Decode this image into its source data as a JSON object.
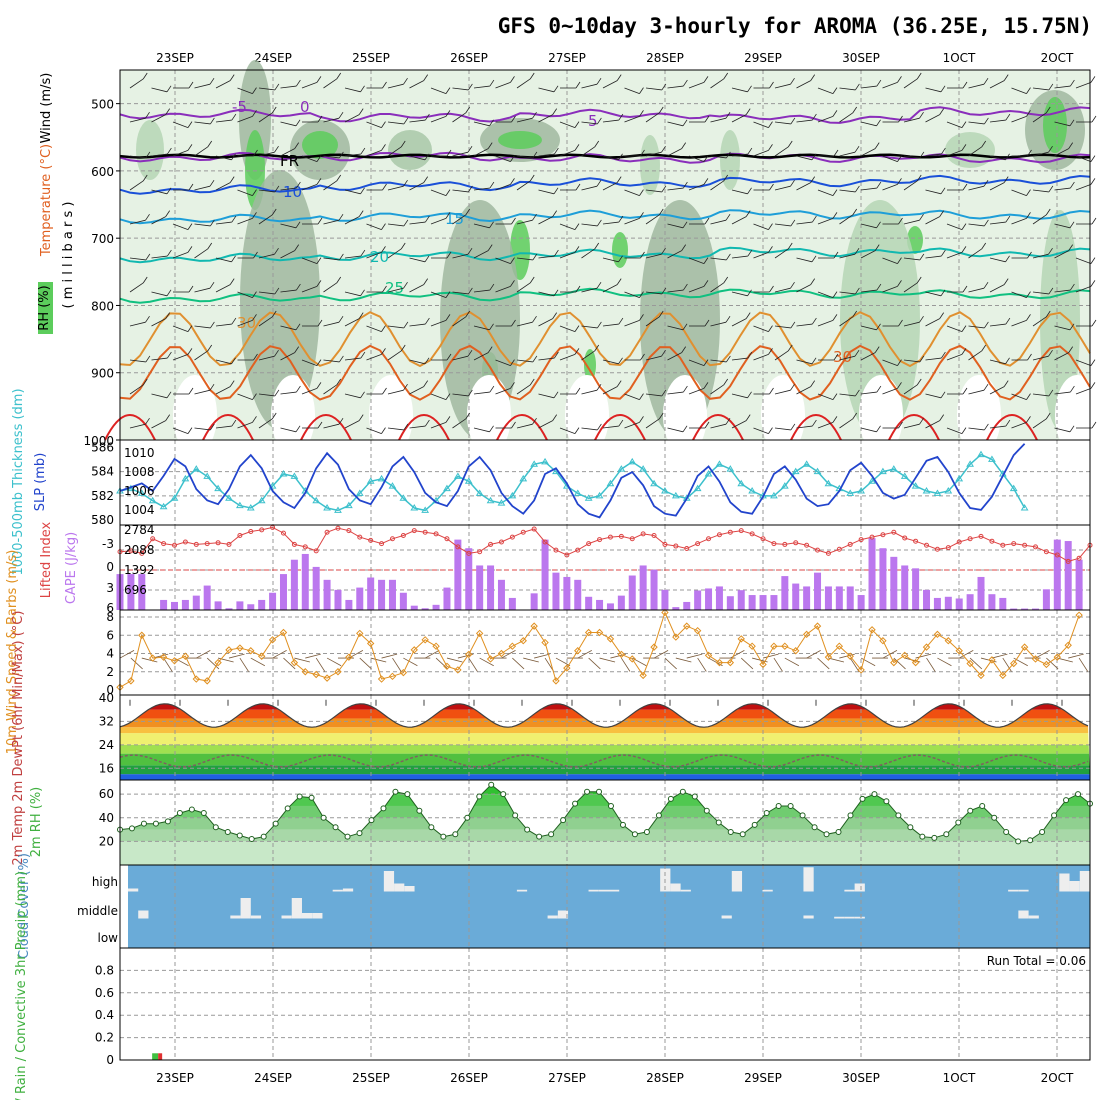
{
  "title": "GFS 0~10day 3-hourly for AROMA (36.25E, 15.75N)",
  "date_labels": [
    "23SEP",
    "24SEP",
    "25SEP",
    "26SEP",
    "27SEP",
    "28SEP",
    "29SEP",
    "30SEP",
    "1OCT",
    "2OCT"
  ],
  "panel_labels": {
    "rh": "RH (%)",
    "temperature": "Temperature (°C)",
    "wind": "Wind (m/s)",
    "millibars": "( m i l l i b a r s )",
    "thickness": "1000-500mb Thickness (dm)",
    "slp": "SLP (mb)",
    "lifted_index": "Lifted Index",
    "cape": "CAPE (J/kg)",
    "wind10": "10m Wind Speed & Barbs (m/s)",
    "t2m": "2m Temp 2m DewPt (6hr Min/Max) (°C)",
    "rh2m": "2m RH (%)",
    "cloud": "Cloud Cover (%)",
    "precip": "Total / Rain / Convective 3hr Precip (mm)"
  },
  "run_total": "Run Total = 0.06",
  "colors": {
    "rh_light": "#e6f2e4",
    "rh_mid": "#b5d6b5",
    "rh_dark": "#a0b8a0",
    "rh_green": "#5ccd5c",
    "thick": "#3cc0cc",
    "slp": "#2244cc",
    "li": "#dd4444",
    "cape": "#bb77ee",
    "wind": "#e09020",
    "cloud": "#6aabd8",
    "rh2m": "#40b040"
  },
  "chart_data": [
    {
      "type": "contour",
      "name": "upper air",
      "ylabel": "millibars",
      "yticks": [
        500,
        600,
        700,
        800,
        900,
        1000
      ],
      "ylim": [
        1000,
        450
      ],
      "isotherm_labels": [
        "-5",
        "0",
        "FR",
        "5",
        "10",
        "15",
        "20",
        "25",
        "30",
        "30"
      ],
      "isotherms": [
        {
          "t": -5,
          "p": [
            516,
            520,
            516,
            522,
            512,
            518
          ]
        },
        {
          "t": 0,
          "p": [
            580,
            578,
            582,
            580,
            582,
            578
          ]
        },
        {
          "t": 5,
          "p": [
            628,
            622,
            618,
            616,
            614,
            616
          ]
        },
        {
          "t": 10,
          "p": [
            672,
            668,
            666,
            664,
            666,
            664
          ]
        },
        {
          "t": 15,
          "p": [
            730,
            726,
            724,
            720,
            722,
            720
          ]
        },
        {
          "t": 20,
          "p": [
            790,
            786,
            782,
            782,
            784,
            780
          ]
        },
        {
          "t": 25,
          "p": [
            850,
            850,
            850,
            850,
            850,
            850
          ]
        },
        {
          "t": 30,
          "p": [
            900,
            900,
            900,
            900,
            900,
            900
          ]
        }
      ]
    },
    {
      "type": "line",
      "name": "thickness & slp",
      "thickness_ticks": [
        580,
        582,
        584,
        586
      ],
      "slp_ticks": [
        1004,
        1006,
        1008,
        1010
      ],
      "thickness": [
        582.4,
        582.6,
        582.2,
        581.6,
        581.1,
        581.8,
        583.4,
        584.2,
        583.6,
        582.6,
        581.8,
        581.2,
        581.0,
        581.6,
        582.8,
        583.8,
        583.6,
        582.4,
        581.6,
        581.0,
        580.8,
        581.2,
        582.2,
        583.2,
        583.4,
        582.8,
        581.8,
        581.0,
        580.8,
        581.6,
        582.6,
        583.6,
        583.2,
        582.2,
        581.6,
        581.4,
        582.0,
        583.4,
        584.6,
        584.8,
        584.0,
        582.8,
        582.2,
        581.8,
        582.0,
        583.0,
        584.2,
        584.8,
        584.2,
        583.0,
        582.4,
        582.0,
        581.8,
        582.6,
        583.8,
        584.6,
        584.2,
        583.0,
        582.4,
        582.0,
        582.0,
        582.8,
        584.0,
        584.6,
        584.0,
        583.0,
        582.6,
        582.2,
        582.4,
        583.2,
        584.0,
        584.2,
        583.6,
        582.8,
        582.4,
        582.2,
        582.4,
        583.4,
        584.6,
        585.4,
        585.0,
        583.8,
        582.6,
        581.0
      ],
      "slp": [
        1006.0,
        1006.4,
        1006.8,
        1006.0,
        1007.6,
        1009.4,
        1008.6,
        1006.2,
        1005.0,
        1004.6,
        1006.2,
        1008.6,
        1009.8,
        1008.4,
        1006.0,
        1004.8,
        1004.2,
        1005.8,
        1008.4,
        1010.0,
        1008.8,
        1006.2,
        1005.0,
        1004.6,
        1006.4,
        1008.6,
        1009.6,
        1008.0,
        1005.8,
        1004.8,
        1004.4,
        1006.0,
        1008.6,
        1009.6,
        1008.2,
        1005.8,
        1004.4,
        1003.6,
        1005.0,
        1007.8,
        1008.4,
        1006.8,
        1004.6,
        1003.6,
        1003.2,
        1005.0,
        1007.4,
        1008.0,
        1006.6,
        1004.4,
        1003.6,
        1003.4,
        1005.2,
        1007.6,
        1008.6,
        1007.0,
        1004.8,
        1003.8,
        1003.6,
        1005.4,
        1007.8,
        1008.6,
        1007.2,
        1005.2,
        1004.4,
        1004.6,
        1006.0,
        1008.2,
        1009.0,
        1007.6,
        1005.8,
        1005.2,
        1005.6,
        1007.4,
        1009.2,
        1009.6,
        1008.0,
        1005.8,
        1004.2,
        1004.0,
        1005.4,
        1007.6,
        1009.8,
        1011.0
      ]
    },
    {
      "type": "bar",
      "name": "lifted index & cape",
      "li_ticks": [
        -3,
        0,
        3,
        6
      ],
      "cape_ticks": [
        696,
        1392,
        2088,
        2784
      ],
      "cape": [
        1250,
        1250,
        1250,
        0,
        350,
        280,
        350,
        500,
        850,
        300,
        60,
        300,
        200,
        350,
        600,
        1250,
        1750,
        1950,
        1500,
        1050,
        700,
        350,
        780,
        1130,
        1050,
        1050,
        600,
        150,
        60,
        180,
        780,
        2450,
        2150,
        1550,
        1550,
        1050,
        420,
        0,
        580,
        2450,
        1300,
        1150,
        1050,
        460,
        350,
        230,
        500,
        1200,
        1550,
        1400,
        700,
        100,
        280,
        680,
        750,
        820,
        480,
        690,
        520,
        520,
        520,
        1180,
        920,
        820,
        1300,
        820,
        820,
        820,
        520,
        2500,
        2150,
        1850,
        1550,
        1450,
        700,
        420,
        460,
        400,
        550,
        1150,
        550,
        420,
        50,
        50,
        50,
        720,
        2450,
        2400,
        1750
      ],
      "lifted_index": [
        -1.2,
        -1.3,
        -1.0,
        -2.8,
        -2.2,
        -2.0,
        -2.4,
        -2.1,
        -2.2,
        -2.3,
        -2.1,
        -3.2,
        -3.7,
        -3.9,
        -4.2,
        -3.5,
        -2.1,
        -1.8,
        -1.3,
        -3.6,
        -4.1,
        -3.8,
        -3.0,
        -2.6,
        -2.2,
        -2.8,
        -3.2,
        -3.8,
        -3.6,
        -3.4,
        -2.8,
        -1.8,
        -1.0,
        -1.2,
        -2.1,
        -2.4,
        -3.0,
        -3.6,
        -4.0,
        -2.4,
        -1.4,
        -0.8,
        -1.4,
        -2.2,
        -2.7,
        -3.0,
        -3.1,
        -2.8,
        -3.4,
        -3.2,
        -2.1,
        -1.9,
        -1.6,
        -2.2,
        -2.8,
        -3.3,
        -3.6,
        -3.8,
        -3.4,
        -2.8,
        -2.2,
        -2.1,
        -2.3,
        -2.0,
        -1.4,
        -1.0,
        -1.5,
        -2.1,
        -2.7,
        -3.0,
        -3.3,
        -3.6,
        -2.9,
        -2.5,
        -2.0,
        -1.5,
        -1.7,
        -2.4,
        -2.8,
        -3.1,
        -2.5,
        -2.0,
        -2.2,
        -2.0,
        -1.8,
        -1.2,
        -0.8,
        0.0,
        -0.4,
        -2.0
      ]
    },
    {
      "type": "line",
      "name": "10m wind",
      "yticks": [
        0,
        2,
        4,
        6,
        8
      ],
      "speed": [
        0.3,
        1.0,
        6.0,
        3.5,
        3.6,
        3.2,
        3.7,
        1.2,
        1.0,
        3.0,
        4.4,
        4.6,
        4.3,
        3.7,
        5.5,
        6.3,
        3.0,
        2.0,
        1.7,
        1.3,
        2.0,
        3.6,
        6.2,
        5.1,
        1.2,
        1.5,
        1.9,
        4.4,
        5.5,
        4.8,
        2.6,
        2.2,
        3.9,
        6.2,
        3.4,
        4.0,
        4.8,
        5.4,
        7.0,
        5.2,
        1.0,
        2.4,
        4.3,
        6.3,
        6.3,
        5.6,
        3.9,
        3.4,
        1.6,
        4.7,
        8.5,
        5.8,
        7.0,
        6.5,
        3.8,
        3.0,
        3.0,
        5.6,
        4.8,
        2.8,
        4.8,
        4.8,
        4.3,
        6.1,
        7.0,
        3.6,
        4.8,
        3.7,
        2.2,
        6.6,
        5.4,
        3.0,
        3.8,
        3.0,
        4.7,
        6.1,
        5.4,
        4.3,
        2.9,
        1.6,
        3.3,
        1.6,
        2.9,
        4.7,
        3.4,
        2.8,
        3.6,
        4.9,
        8.2
      ]
    },
    {
      "type": "area",
      "name": "2m temperature",
      "yticks": [
        16,
        24,
        32,
        40
      ],
      "ylim": [
        12,
        41
      ],
      "temp_series": "diurnal max 38, min 30",
      "dewpoint_series": "16 - 21"
    },
    {
      "type": "area",
      "name": "2m rh",
      "yticks": [
        20,
        40,
        60
      ],
      "ylim": [
        0,
        72
      ],
      "rh_values": [
        30,
        31,
        35,
        35,
        37,
        44,
        47,
        44,
        32,
        28,
        25,
        22,
        24,
        35,
        48,
        58,
        57,
        40,
        32,
        24,
        27,
        38,
        48,
        62,
        60,
        46,
        32,
        24,
        26,
        40,
        58,
        68,
        60,
        42,
        30,
        24,
        26,
        38,
        52,
        62,
        62,
        50,
        34,
        26,
        28,
        42,
        56,
        62,
        58,
        46,
        36,
        28,
        26,
        34,
        44,
        50,
        50,
        42,
        32,
        26,
        28,
        42,
        56,
        60,
        54,
        42,
        32,
        24,
        23,
        26,
        36,
        46,
        50,
        40,
        28,
        20,
        21,
        28,
        42,
        55,
        60,
        52
      ]
    },
    {
      "type": "bar",
      "name": "cloud cover",
      "layers": [
        "high",
        "middle",
        "low"
      ],
      "high": [
        10,
        0,
        0,
        0,
        0,
        0,
        0,
        0,
        0,
        0,
        0,
        0,
        0,
        0,
        0,
        0,
        0,
        0,
        0,
        0,
        5,
        10,
        0,
        0,
        0,
        80,
        30,
        20,
        0,
        0,
        0,
        0,
        0,
        0,
        0,
        0,
        0,
        0,
        5,
        0,
        0,
        0,
        0,
        0,
        0,
        5,
        5,
        5,
        0,
        0,
        0,
        0,
        90,
        30,
        5,
        0,
        0,
        0,
        0,
        80,
        0,
        0,
        5,
        0,
        0,
        0,
        95,
        0,
        0,
        0,
        5,
        30,
        0,
        0,
        0,
        0,
        0,
        0,
        0,
        0,
        0,
        0,
        0,
        0,
        0,
        0,
        5,
        5,
        0,
        0,
        0,
        70,
        40,
        80
      ],
      "middle": [
        0,
        30,
        0,
        0,
        0,
        0,
        0,
        0,
        0,
        0,
        10,
        80,
        10,
        0,
        0,
        10,
        80,
        20,
        20,
        0,
        0,
        0,
        0,
        0,
        0,
        0,
        0,
        0,
        0,
        0,
        0,
        0,
        0,
        0,
        0,
        0,
        0,
        0,
        0,
        0,
        0,
        10,
        30,
        0,
        0,
        0,
        0,
        0,
        0,
        0,
        0,
        0,
        0,
        0,
        0,
        0,
        0,
        0,
        10,
        0,
        0,
        0,
        0,
        0,
        0,
        0,
        10,
        0,
        0,
        5,
        5,
        5,
        0,
        0,
        0,
        0,
        0,
        0,
        0,
        0,
        0,
        0,
        0,
        0,
        0,
        0,
        0,
        30,
        10,
        0
      ]
    },
    {
      "type": "bar",
      "name": "precipitation",
      "yticks": [
        0,
        0.2,
        0.4,
        0.6,
        0.8
      ],
      "ylim": [
        0,
        1.0
      ],
      "series": [
        {
          "name": "Total",
          "color": "#40c040",
          "values": [
            0.06
          ]
        },
        {
          "name": "Convective",
          "color": "#e03030",
          "values": [
            0.06
          ]
        }
      ],
      "bar_time_index": 3.5
    }
  ]
}
